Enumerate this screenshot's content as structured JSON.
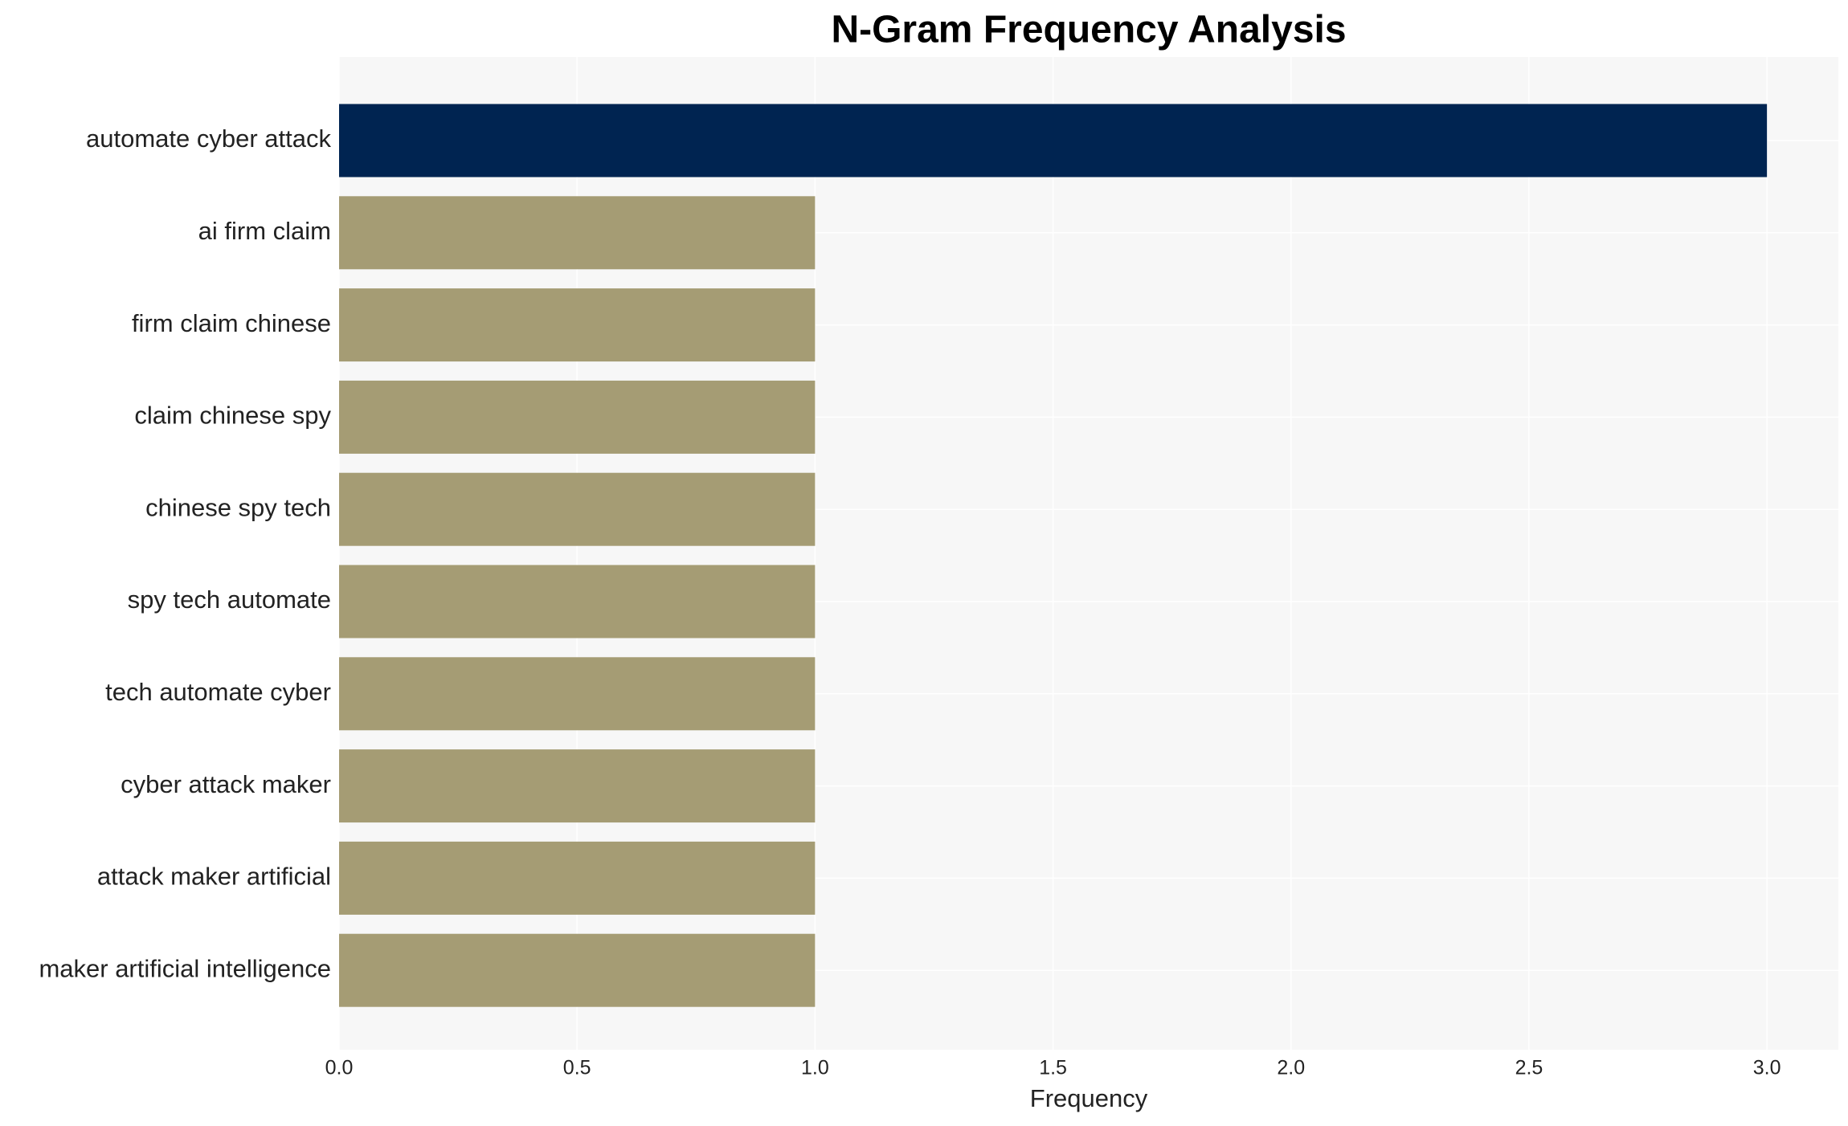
{
  "chart_data": {
    "type": "bar",
    "orientation": "horizontal",
    "title": "N-Gram Frequency Analysis",
    "x_label": "Frequency",
    "categories": [
      "automate cyber attack",
      "ai firm claim",
      "firm claim chinese",
      "claim chinese spy",
      "chinese spy tech",
      "spy tech automate",
      "tech automate cyber",
      "cyber attack maker",
      "attack maker artificial",
      "maker artificial intelligence"
    ],
    "values": [
      3,
      1,
      1,
      1,
      1,
      1,
      1,
      1,
      1,
      1
    ],
    "colors": [
      "#002451",
      "#a59c74",
      "#a59c74",
      "#a59c74",
      "#a59c74",
      "#a59c74",
      "#a59c74",
      "#a59c74",
      "#a59c74",
      "#a59c74"
    ],
    "xlim": [
      0,
      3.15
    ],
    "xticks": [
      {
        "value": 0,
        "label": "0.0"
      },
      {
        "value": 0.5,
        "label": "0.5"
      },
      {
        "value": 1,
        "label": "1.0"
      },
      {
        "value": 1.5,
        "label": "1.5"
      },
      {
        "value": 2,
        "label": "2.0"
      },
      {
        "value": 2.5,
        "label": "2.5"
      },
      {
        "value": 3,
        "label": "3.0"
      }
    ],
    "grid": true
  }
}
